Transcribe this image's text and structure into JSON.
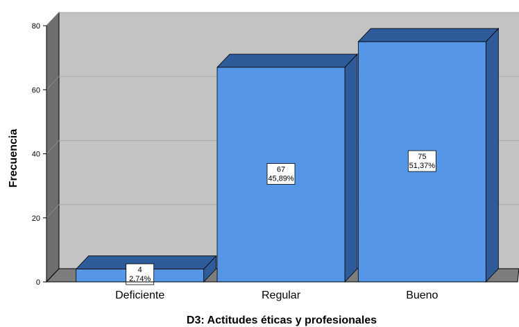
{
  "chart_data": {
    "type": "bar",
    "title": "",
    "xlabel": "D3: Actitudes éticas y profesionales",
    "ylabel": "Frecuencia",
    "categories": [
      "Deficiente",
      "Regular",
      "Bueno"
    ],
    "values": [
      4,
      67,
      75
    ],
    "percent_labels": [
      "2,74%",
      "45,89%",
      "51,37%"
    ],
    "ylim": [
      0,
      80
    ],
    "yticks": [
      "0",
      "20",
      "40",
      "60",
      "80"
    ],
    "grid": true,
    "style": "3d",
    "colors": {
      "bar_front": "#5597e6",
      "bar_top": "#2e5b9a",
      "bar_side": "#2e5b9a",
      "plot_back_wall": "#c3c3c3",
      "plot_left_wall": "#6e6e6e",
      "plot_floor": "#7d7d7d",
      "gridline": "#a9a9a9"
    }
  }
}
